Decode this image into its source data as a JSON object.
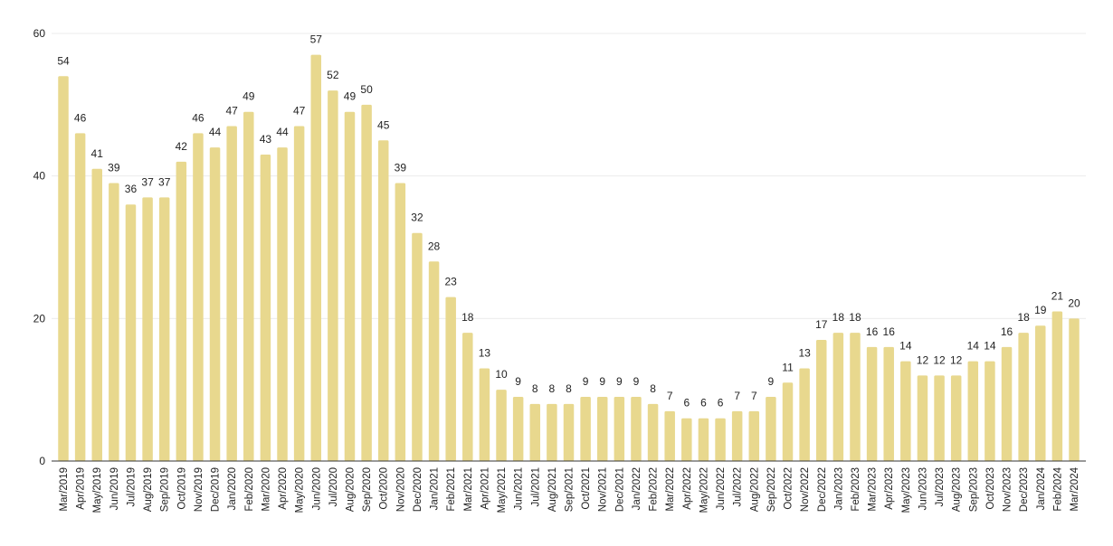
{
  "chart_data": {
    "type": "bar",
    "title": "",
    "xlabel": "",
    "ylabel": "",
    "ylim": [
      0,
      60
    ],
    "yticks": [
      0,
      20,
      40,
      60
    ],
    "grid": true,
    "bar_color": "#e8d88e",
    "categories": [
      "Mar/2019",
      "Apr/2019",
      "May/2019",
      "Jun/2019",
      "Jul/2019",
      "Aug/2019",
      "Sep/2019",
      "Oct/2019",
      "Nov/2019",
      "Dec/2019",
      "Jan/2020",
      "Feb/2020",
      "Mar/2020",
      "Apr/2020",
      "May/2020",
      "Jun/2020",
      "Jul/2020",
      "Aug/2020",
      "Sep/2020",
      "Oct/2020",
      "Nov/2020",
      "Dec/2020",
      "Jan/2021",
      "Feb/2021",
      "Mar/2021",
      "Apr/2021",
      "May/2021",
      "Jun/2021",
      "Jul/2021",
      "Aug/2021",
      "Sep/2021",
      "Oct/2021",
      "Nov/2021",
      "Dec/2021",
      "Jan/2022",
      "Feb/2022",
      "Mar/2022",
      "Apr/2022",
      "May/2022",
      "Jun/2022",
      "Jul/2022",
      "Aug/2022",
      "Sep/2022",
      "Oct/2022",
      "Nov/2022",
      "Dec/2022",
      "Jan/2023",
      "Feb/2023",
      "Mar/2023",
      "Apr/2023",
      "May/2023",
      "Jun/2023",
      "Jul/2023",
      "Aug/2023",
      "Sep/2023",
      "Oct/2023",
      "Nov/2023",
      "Dec/2023",
      "Jan/2024",
      "Feb/2024",
      "Mar/2024"
    ],
    "values": [
      54,
      46,
      41,
      39,
      36,
      37,
      37,
      42,
      46,
      44,
      47,
      49,
      43,
      44,
      47,
      57,
      52,
      49,
      50,
      45,
      39,
      32,
      28,
      23,
      18,
      13,
      10,
      9,
      8,
      8,
      8,
      9,
      9,
      9,
      9,
      8,
      7,
      6,
      6,
      6,
      7,
      7,
      9,
      11,
      13,
      17,
      18,
      18,
      16,
      16,
      14,
      12,
      12,
      12,
      14,
      14,
      16,
      18,
      19,
      21,
      20
    ]
  }
}
